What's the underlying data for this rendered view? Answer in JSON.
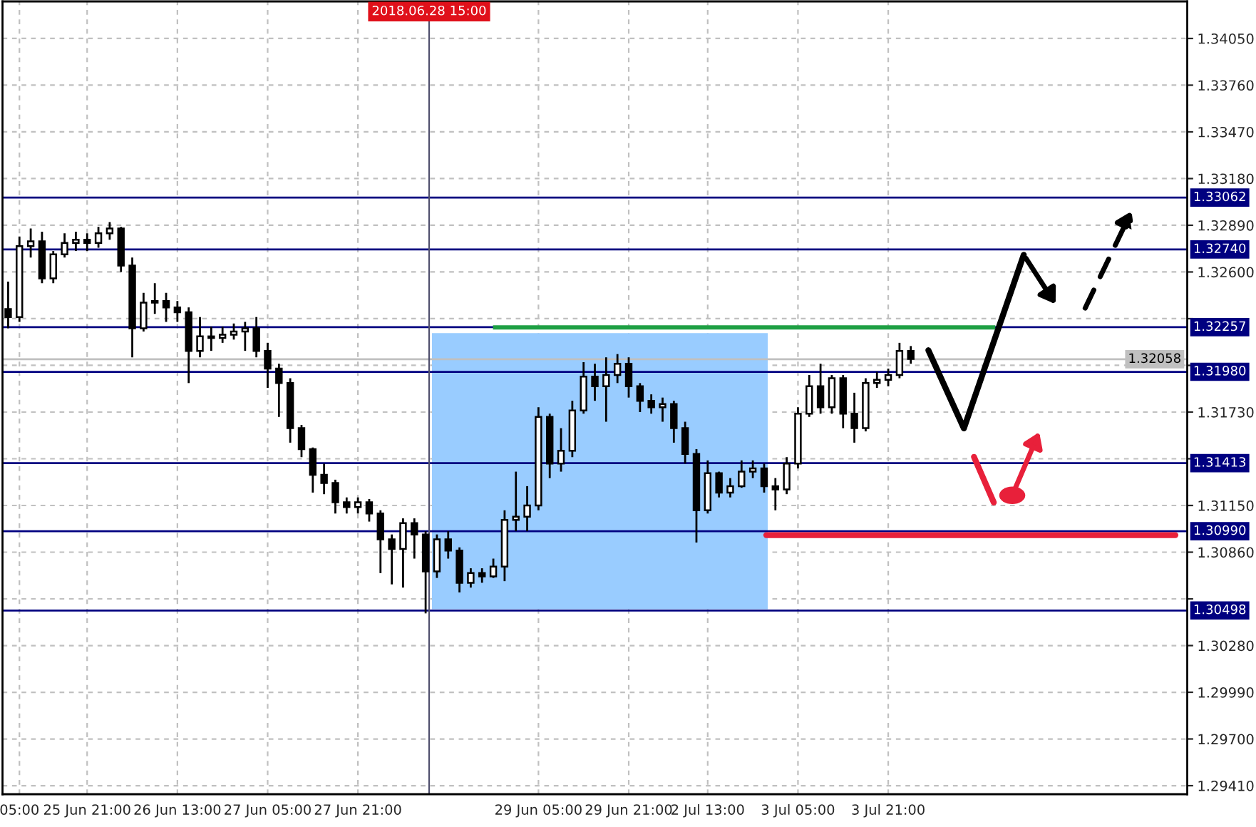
{
  "chart_data": {
    "type": "candlestick",
    "categories": [
      null,
      "05:00",
      null,
      null,
      null,
      null,
      null,
      "25 Jun 21:00",
      null,
      null,
      null,
      null,
      null,
      null,
      null,
      "26 Jun 13:00",
      null,
      null,
      null,
      null,
      null,
      null,
      null,
      "27 Jun 05:00",
      null,
      null,
      null,
      null,
      null,
      null,
      null,
      "27 Jun 21:00",
      null,
      null,
      null,
      null,
      null,
      null,
      null,
      null,
      null,
      null,
      null,
      null,
      null,
      null,
      null,
      "29 Jun 05:00",
      null,
      null,
      null,
      null,
      null,
      null,
      null,
      "29 Jun 21:00",
      null,
      null,
      null,
      null,
      null,
      null,
      "2 Jul 13:00",
      null,
      null,
      null,
      null,
      null,
      null,
      null,
      "3 Jul 05:00",
      null,
      null,
      null,
      null,
      null,
      null,
      null,
      "3 Jul 21:00",
      null,
      null,
      null,
      null,
      null,
      null,
      null,
      null,
      null,
      null,
      null,
      null,
      null,
      null,
      null,
      null,
      null,
      null,
      null,
      null,
      null,
      null,
      null,
      null,
      null,
      null
    ],
    "annotations": [
      "2018.06.28 15:00"
    ],
    "series": [
      {
        "color": "#000000",
        "ohlc": [
          [
            1.3237,
            1.3254,
            1.3225,
            1.3232
          ],
          [
            1.3232,
            1.3282,
            1.3229,
            1.3276
          ],
          [
            1.3276,
            1.3287,
            1.3269,
            1.3279
          ],
          [
            1.3279,
            1.3285,
            1.3253,
            1.3256
          ],
          [
            1.3256,
            1.3273,
            1.3253,
            1.3271
          ],
          [
            1.3271,
            1.3284,
            1.3269,
            1.3278
          ],
          [
            1.3278,
            1.3285,
            1.3273,
            1.328
          ],
          [
            1.328,
            1.3284,
            1.3273,
            1.3278
          ],
          [
            1.3278,
            1.3288,
            1.3275,
            1.3284
          ],
          [
            1.3284,
            1.3291,
            1.328,
            1.3287
          ],
          [
            1.3287,
            1.3288,
            1.326,
            1.3264
          ],
          [
            1.3264,
            1.3269,
            1.3207,
            1.3225
          ],
          [
            1.3225,
            1.3247,
            1.3223,
            1.3241
          ],
          [
            1.3241,
            1.3253,
            1.3234,
            1.3242
          ],
          [
            1.3242,
            1.3247,
            1.3229,
            1.3238
          ],
          [
            1.3238,
            1.3242,
            1.3229,
            1.3235
          ],
          [
            1.3235,
            1.3238,
            1.3191,
            1.3211
          ],
          [
            1.3211,
            1.3232,
            1.3207,
            1.322
          ],
          [
            1.322,
            1.3226,
            1.3211,
            1.3219
          ],
          [
            1.3219,
            1.3226,
            1.3216,
            1.3221
          ],
          [
            1.3221,
            1.3228,
            1.3218,
            1.3223
          ],
          [
            1.3223,
            1.3229,
            1.3211,
            1.3225
          ],
          [
            1.3225,
            1.3232,
            1.3207,
            1.3211
          ],
          [
            1.3211,
            1.3216,
            1.3188,
            1.32
          ],
          [
            1.32,
            1.3203,
            1.317,
            1.3191
          ],
          [
            1.3191,
            1.3194,
            1.3154,
            1.3163
          ],
          [
            1.3163,
            1.3165,
            1.3145,
            1.315
          ],
          [
            1.315,
            1.3151,
            1.3123,
            1.3134
          ],
          [
            1.3134,
            1.3141,
            1.3122,
            1.3129
          ],
          [
            1.3129,
            1.3131,
            1.311,
            1.3117
          ],
          [
            1.3117,
            1.312,
            1.311,
            1.3114
          ],
          [
            1.3114,
            1.312,
            1.311,
            1.3117
          ],
          [
            1.3117,
            1.3119,
            1.3105,
            1.311
          ],
          [
            1.311,
            1.3112,
            1.3073,
            1.3094
          ],
          [
            1.3094,
            1.3097,
            1.3066,
            1.3088
          ],
          [
            1.3088,
            1.3107,
            1.3064,
            1.3104
          ],
          [
            1.3104,
            1.3107,
            1.3082,
            1.3097
          ],
          [
            1.3097,
            1.3099,
            1.3048,
            1.3074
          ],
          [
            1.3074,
            1.3097,
            1.307,
            1.3094
          ],
          [
            1.3094,
            1.3099,
            1.3082,
            1.3087
          ],
          [
            1.3087,
            1.3089,
            1.3061,
            1.3067
          ],
          [
            1.3067,
            1.3076,
            1.3064,
            1.3073
          ],
          [
            1.3073,
            1.3076,
            1.3067,
            1.3071
          ],
          [
            1.3071,
            1.3082,
            1.307,
            1.3077
          ],
          [
            1.3077,
            1.3112,
            1.3068,
            1.3106
          ],
          [
            1.3106,
            1.3136,
            1.3099,
            1.3108
          ],
          [
            1.3108,
            1.3127,
            1.3099,
            1.3115
          ],
          [
            1.3115,
            1.3176,
            1.3112,
            1.317
          ],
          [
            1.317,
            1.3172,
            1.3132,
            1.3141
          ],
          [
            1.3141,
            1.3163,
            1.3136,
            1.3149
          ],
          [
            1.3149,
            1.318,
            1.3145,
            1.3174
          ],
          [
            1.3174,
            1.3204,
            1.3172,
            1.3195
          ],
          [
            1.3195,
            1.3203,
            1.318,
            1.3189
          ],
          [
            1.3189,
            1.3207,
            1.3167,
            1.3196
          ],
          [
            1.3196,
            1.3209,
            1.3191,
            1.3203
          ],
          [
            1.3203,
            1.3207,
            1.3182,
            1.3189
          ],
          [
            1.3189,
            1.3191,
            1.3173,
            1.318
          ],
          [
            1.318,
            1.3184,
            1.3172,
            1.3176
          ],
          [
            1.3176,
            1.3182,
            1.3167,
            1.3178
          ],
          [
            1.3178,
            1.318,
            1.3154,
            1.3163
          ],
          [
            1.3163,
            1.3167,
            1.3141,
            1.3147
          ],
          [
            1.3147,
            1.315,
            1.3092,
            1.3112
          ],
          [
            1.3112,
            1.3143,
            1.311,
            1.3135
          ],
          [
            1.3135,
            1.3136,
            1.312,
            1.3123
          ],
          [
            1.3123,
            1.3132,
            1.312,
            1.3127
          ],
          [
            1.3127,
            1.3143,
            1.3126,
            1.3136
          ],
          [
            1.3136,
            1.3143,
            1.3132,
            1.3138
          ],
          [
            1.3138,
            1.3141,
            1.3123,
            1.3127
          ],
          [
            1.3127,
            1.3132,
            1.3112,
            1.3125
          ],
          [
            1.3125,
            1.3145,
            1.3122,
            1.3141
          ],
          [
            1.3141,
            1.3176,
            1.3138,
            1.3172
          ],
          [
            1.3172,
            1.3196,
            1.317,
            1.3189
          ],
          [
            1.3189,
            1.3203,
            1.3172,
            1.3176
          ],
          [
            1.3176,
            1.3196,
            1.3172,
            1.3194
          ],
          [
            1.3194,
            1.3196,
            1.3163,
            1.3172
          ],
          [
            1.3172,
            1.3185,
            1.3154,
            1.3163
          ],
          [
            1.3163,
            1.3194,
            1.3161,
            1.3191
          ],
          [
            1.3191,
            1.3198,
            1.3188,
            1.3193
          ],
          [
            1.3193,
            1.32,
            1.3189,
            1.3196
          ],
          [
            1.3196,
            1.3216,
            1.3194,
            1.3211
          ],
          [
            1.3211,
            1.3214,
            1.3203,
            1.3206
          ],
          null,
          null,
          null,
          null,
          null,
          null,
          null,
          null,
          null,
          null,
          null,
          null,
          null,
          null,
          null,
          null,
          null,
          null,
          null,
          null,
          null,
          null,
          null,
          null
        ]
      }
    ],
    "ylim": [
      1.29357,
      1.3428
    ],
    "yticks": [
      {
        "value": 1.3405,
        "label": "1.34050"
      },
      {
        "value": 1.3376,
        "label": "1.33760"
      },
      {
        "value": 1.3347,
        "label": "1.33470"
      },
      {
        "value": 1.3318,
        "label": "1.33180"
      },
      {
        "value": 1.3289,
        "label": "1.32890"
      },
      {
        "value": 1.326,
        "label": "1.32600"
      },
      {
        "value": 1.3231,
        "label": null
      },
      {
        "value": 1.3202,
        "label": null
      },
      {
        "value": 1.3173,
        "label": "1.31730"
      },
      {
        "value": 1.3144,
        "label": null
      },
      {
        "value": 1.3115,
        "label": "1.31150"
      },
      {
        "value": 1.3086,
        "label": "1.30860"
      },
      {
        "value": 1.3057,
        "label": null
      },
      {
        "value": 1.3028,
        "label": "1.30280"
      },
      {
        "value": 1.2999,
        "label": "1.29990"
      },
      {
        "value": 1.297,
        "label": "1.29700"
      },
      {
        "value": 1.2941,
        "label": "1.29410"
      }
    ],
    "grid": true,
    "ref_lines": [
      {
        "axis": "y",
        "value": 1.33062,
        "label": "1.33062",
        "color": "#000080"
      },
      {
        "axis": "y",
        "value": 1.3274,
        "label": "1.32740",
        "color": "#000080"
      },
      {
        "axis": "y",
        "value": 1.32257,
        "label": "1.32257",
        "color": "#000080"
      },
      {
        "axis": "y",
        "value": 1.3198,
        "label": "1.31980",
        "color": "#000080"
      },
      {
        "axis": "y",
        "value": 1.31413,
        "label": "1.31413",
        "color": "#000080"
      },
      {
        "axis": "y",
        "value": 1.3099,
        "label": "1.30990",
        "color": "#000080"
      },
      {
        "axis": "y",
        "value": 1.30498,
        "label": "1.30498",
        "color": "#000080"
      },
      {
        "axis": "y",
        "value": 1.32058,
        "label": "1.32058",
        "color": "#c0c0c0"
      }
    ]
  }
}
